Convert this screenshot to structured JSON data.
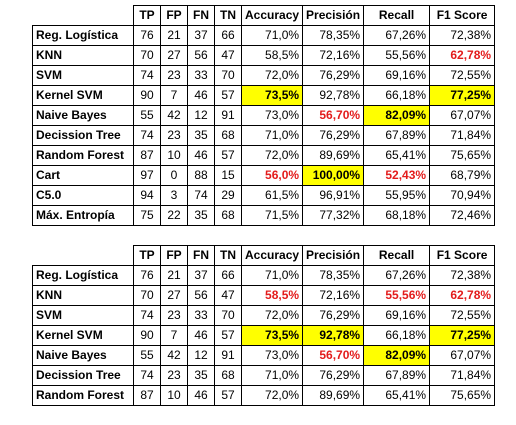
{
  "headers": [
    "",
    "TP",
    "FP",
    "FN",
    "TN",
    "Accuracy",
    "Precisión",
    "Recall",
    "F1 Score"
  ],
  "table1": [
    {
      "model": "Reg. Logística",
      "tp": "76",
      "fp": "21",
      "fn": "37",
      "tn": "66",
      "acc": "71,0%",
      "prec": "78,35%",
      "rec": "67,26%",
      "f1": "72,38%",
      "style": {}
    },
    {
      "model": "KNN",
      "tp": "70",
      "fp": "27",
      "fn": "56",
      "tn": "47",
      "acc": "58,5%",
      "prec": "72,16%",
      "rec": "55,56%",
      "f1": "62,78%",
      "style": {
        "f1": "red"
      }
    },
    {
      "model": "SVM",
      "tp": "74",
      "fp": "23",
      "fn": "33",
      "tn": "70",
      "acc": "72,0%",
      "prec": "76,29%",
      "rec": "69,16%",
      "f1": "72,55%",
      "style": {}
    },
    {
      "model": "Kernel SVM",
      "tp": "90",
      "fp": "7",
      "fn": "46",
      "tn": "57",
      "acc": "73,5%",
      "prec": "92,78%",
      "rec": "66,18%",
      "f1": "77,25%",
      "style": {
        "acc": "hl",
        "f1": "hl"
      }
    },
    {
      "model": "Naive Bayes",
      "tp": "55",
      "fp": "42",
      "fn": "12",
      "tn": "91",
      "acc": "73,0%",
      "prec": "56,70%",
      "rec": "82,09%",
      "f1": "67,07%",
      "style": {
        "prec": "red",
        "rec": "hl"
      }
    },
    {
      "model": "Decission Tree",
      "tp": "74",
      "fp": "23",
      "fn": "35",
      "tn": "68",
      "acc": "71,0%",
      "prec": "76,29%",
      "rec": "67,89%",
      "f1": "71,84%",
      "style": {}
    },
    {
      "model": "Random Forest",
      "tp": "87",
      "fp": "10",
      "fn": "46",
      "tn": "57",
      "acc": "72,0%",
      "prec": "89,69%",
      "rec": "65,41%",
      "f1": "75,65%",
      "style": {}
    },
    {
      "model": "Cart",
      "tp": "97",
      "fp": "0",
      "fn": "88",
      "tn": "15",
      "acc": "56,0%",
      "prec": "100,00%",
      "rec": "52,43%",
      "f1": "68,79%",
      "style": {
        "acc": "red",
        "prec": "hl",
        "rec": "red"
      }
    },
    {
      "model": "C5.0",
      "tp": "94",
      "fp": "3",
      "fn": "74",
      "tn": "29",
      "acc": "61,5%",
      "prec": "96,91%",
      "rec": "55,95%",
      "f1": "70,94%",
      "style": {}
    },
    {
      "model": "Máx. Entropía",
      "tp": "75",
      "fp": "22",
      "fn": "35",
      "tn": "68",
      "acc": "71,5%",
      "prec": "77,32%",
      "rec": "68,18%",
      "f1": "72,46%",
      "style": {}
    }
  ],
  "table2": [
    {
      "model": "Reg. Logística",
      "tp": "76",
      "fp": "21",
      "fn": "37",
      "tn": "66",
      "acc": "71,0%",
      "prec": "78,35%",
      "rec": "67,26%",
      "f1": "72,38%",
      "style": {}
    },
    {
      "model": "KNN",
      "tp": "70",
      "fp": "27",
      "fn": "56",
      "tn": "47",
      "acc": "58,5%",
      "prec": "72,16%",
      "rec": "55,56%",
      "f1": "62,78%",
      "style": {
        "acc": "red",
        "rec": "red",
        "f1": "red"
      }
    },
    {
      "model": "SVM",
      "tp": "74",
      "fp": "23",
      "fn": "33",
      "tn": "70",
      "acc": "72,0%",
      "prec": "76,29%",
      "rec": "69,16%",
      "f1": "72,55%",
      "style": {}
    },
    {
      "model": "Kernel SVM",
      "tp": "90",
      "fp": "7",
      "fn": "46",
      "tn": "57",
      "acc": "73,5%",
      "prec": "92,78%",
      "rec": "66,18%",
      "f1": "77,25%",
      "style": {
        "acc": "hl",
        "prec": "hl",
        "f1": "hl"
      }
    },
    {
      "model": "Naive Bayes",
      "tp": "55",
      "fp": "42",
      "fn": "12",
      "tn": "91",
      "acc": "73,0%",
      "prec": "56,70%",
      "rec": "82,09%",
      "f1": "67,07%",
      "style": {
        "prec": "red",
        "rec": "hl"
      }
    },
    {
      "model": "Decission Tree",
      "tp": "74",
      "fp": "23",
      "fn": "35",
      "tn": "68",
      "acc": "71,0%",
      "prec": "76,29%",
      "rec": "67,89%",
      "f1": "71,84%",
      "style": {}
    },
    {
      "model": "Random Forest",
      "tp": "87",
      "fp": "10",
      "fn": "46",
      "tn": "57",
      "acc": "72,0%",
      "prec": "89,69%",
      "rec": "65,41%",
      "f1": "75,65%",
      "style": {}
    }
  ],
  "colors": {
    "highlight": "#ffff00",
    "red": "#e31b1b"
  }
}
